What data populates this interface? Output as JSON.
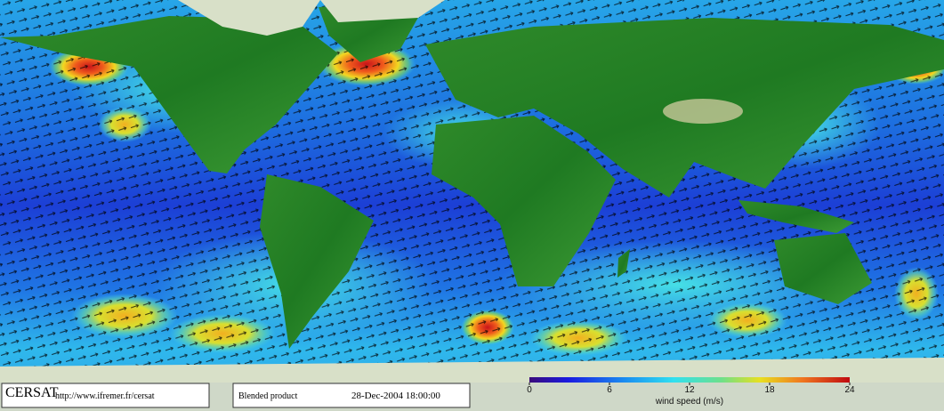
{
  "logo": "CERSAT",
  "url": "http://www.ifremer.fr/cersat",
  "product": "Blended product",
  "date": "28-Dec-2004 18:00:00",
  "colorbar": {
    "label": "wind speed (m/s)",
    "lim": [
      0,
      24
    ],
    "ticks": [
      0,
      6,
      12,
      18,
      24
    ]
  }
}
